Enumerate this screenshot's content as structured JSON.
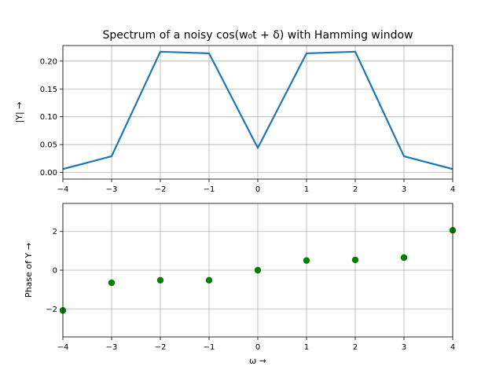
{
  "chart_data": [
    {
      "type": "line",
      "title": "Spectrum of a noisy cos(w₀t + δ) with Hamming window",
      "xlabel": "",
      "ylabel": "|Y| →",
      "x": [
        -4,
        -3,
        -2,
        -1,
        0,
        1,
        2,
        3,
        4
      ],
      "series": [
        {
          "values": [
            0.006,
            0.029,
            0.217,
            0.214,
            0.044,
            0.214,
            0.217,
            0.029,
            0.006
          ],
          "color": "#1f77b4"
        }
      ],
      "xlim": [
        -4,
        4
      ],
      "ylim": [
        -0.012,
        0.228
      ],
      "xticks": [
        "−4",
        "−3",
        "−2",
        "−1",
        "0",
        "1",
        "2",
        "3",
        "4"
      ],
      "yticks": [
        "0.00",
        "0.05",
        "0.10",
        "0.15",
        "0.20"
      ],
      "grid": true
    },
    {
      "type": "scatter",
      "title": "",
      "xlabel": "ω →",
      "ylabel": "Phase of Y →",
      "x": [
        -4,
        -3,
        -2,
        -1,
        0,
        1,
        2,
        3,
        4
      ],
      "series": [
        {
          "values": [
            -2.08,
            -0.65,
            -0.52,
            -0.52,
            0.0,
            0.5,
            0.53,
            0.65,
            2.06
          ],
          "color": "#008000"
        }
      ],
      "xlim": [
        -4,
        4
      ],
      "ylim": [
        -3.45,
        3.45
      ],
      "xticks": [
        "−4",
        "−3",
        "−2",
        "−1",
        "0",
        "1",
        "2",
        "3",
        "4"
      ],
      "yticks": [
        "−2",
        "0",
        "2"
      ],
      "grid": true
    }
  ]
}
